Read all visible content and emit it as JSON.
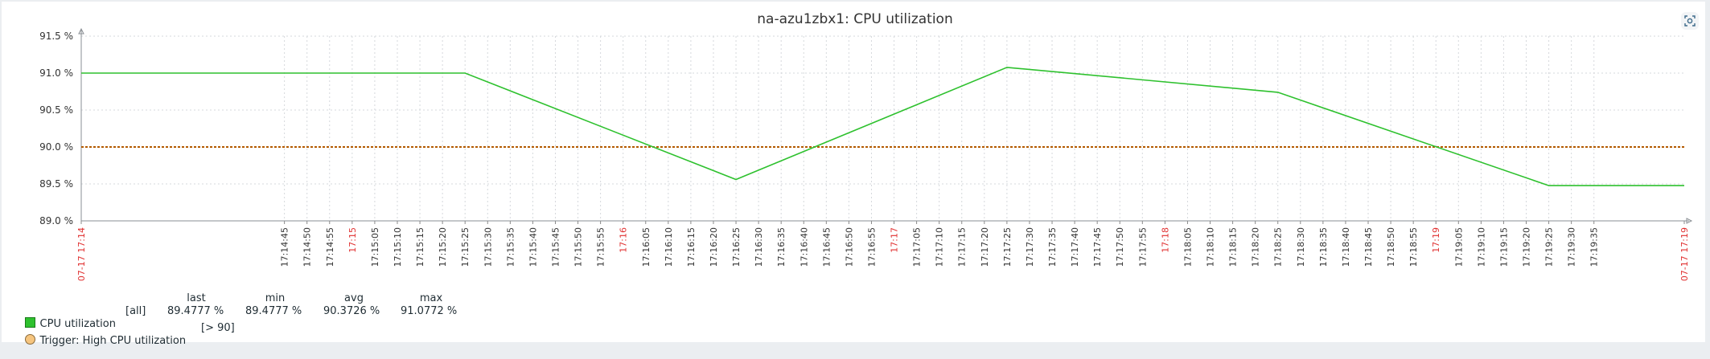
{
  "title": "na-azu1zbx1: CPU utilization",
  "chart_data": {
    "type": "line",
    "title": "na-azu1zbx1: CPU utilization",
    "ylim": [
      89.0,
      91.5
    ],
    "y_ticks": [
      "91.5 %",
      "91.0 %",
      "90.5 %",
      "90.0 %",
      "89.5 %",
      "89.0 %"
    ],
    "y_tick_values": [
      91.5,
      91.0,
      90.5,
      90.0,
      89.5,
      89.0
    ],
    "x_range": [
      "17:14:00",
      "17:19:55"
    ],
    "x_start_label": "07-17 17:14",
    "x_end_label": "07-17 17:19",
    "x_tick_labels": [
      "17:14:45",
      "17:14:50",
      "17:14:55",
      "17:15",
      "17:15:05",
      "17:15:10",
      "17:15:15",
      "17:15:20",
      "17:15:25",
      "17:15:30",
      "17:15:35",
      "17:15:40",
      "17:15:45",
      "17:15:50",
      "17:15:55",
      "17:16",
      "17:16:05",
      "17:16:10",
      "17:16:15",
      "17:16:20",
      "17:16:25",
      "17:16:30",
      "17:16:35",
      "17:16:40",
      "17:16:45",
      "17:16:50",
      "17:16:55",
      "17:17",
      "17:17:05",
      "17:17:10",
      "17:17:15",
      "17:17:20",
      "17:17:25",
      "17:17:30",
      "17:17:35",
      "17:17:40",
      "17:17:45",
      "17:17:50",
      "17:17:55",
      "17:18",
      "17:18:05",
      "17:18:10",
      "17:18:15",
      "17:18:20",
      "17:18:25",
      "17:18:30",
      "17:18:35",
      "17:18:40",
      "17:18:45",
      "17:18:50",
      "17:18:55",
      "17:19",
      "17:19:05",
      "17:19:10",
      "17:19:15",
      "17:19:20",
      "17:19:25",
      "17:19:30",
      "17:19:35"
    ],
    "series": [
      {
        "name": "CPU utilization",
        "color": "#2ec12e",
        "points": [
          {
            "x": "17:14:00",
            "y": 91.0
          },
          {
            "x": "17:15:25",
            "y": 91.0
          },
          {
            "x": "17:16:25",
            "y": 89.56
          },
          {
            "x": "17:17:25",
            "y": 91.0772
          },
          {
            "x": "17:18:25",
            "y": 90.74
          },
          {
            "x": "17:19:25",
            "y": 89.4777
          },
          {
            "x": "17:19:55",
            "y": 89.4777
          }
        ]
      }
    ],
    "trigger": {
      "name": "Trigger: High CPU utilization",
      "threshold": 90,
      "threshold_label": "[> 90]",
      "color": "#b35a00"
    },
    "grid": true
  },
  "legend": {
    "headers": {
      "last": "last",
      "min": "min",
      "avg": "avg",
      "max": "max"
    },
    "series_row": {
      "name": "CPU utilization",
      "func": "[all]",
      "last": "89.4777 %",
      "min": "89.4777 %",
      "avg": "90.3726 %",
      "max": "91.0772 %"
    },
    "trigger_row": {
      "name": "Trigger: High CPU utilization",
      "condition": "[> 90]"
    }
  },
  "colors": {
    "series": "#2ec12e",
    "trigger": "#b35a00",
    "major_tick": "#e03030",
    "grid": "#d5d8dc"
  }
}
